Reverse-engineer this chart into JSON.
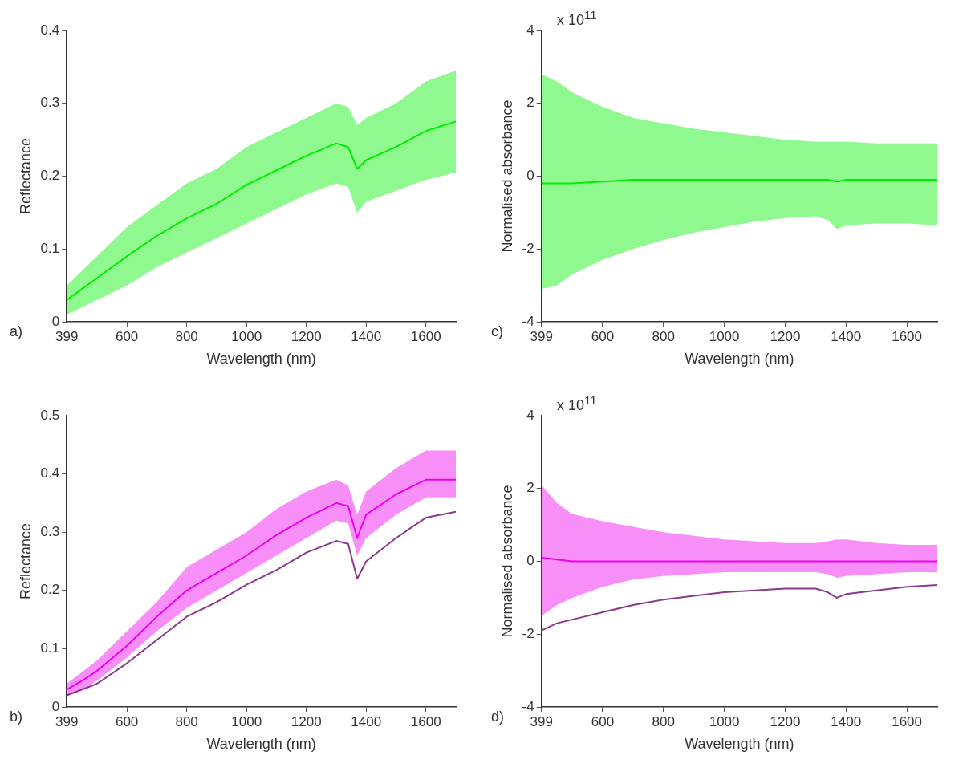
{
  "chart_data": [
    {
      "type": "line",
      "xlabel": "Wavelength (nm)",
      "ylabel": "Reflectance",
      "annotations": [
        "a)"
      ],
      "x": [
        399,
        450,
        500,
        600,
        700,
        800,
        900,
        1000,
        1100,
        1200,
        1300,
        1340,
        1370,
        1400,
        1500,
        1600,
        1700
      ],
      "xlim": [
        399,
        1700
      ],
      "xticks": [
        399,
        600,
        800,
        1000,
        1200,
        1400,
        1600
      ],
      "ylim": [
        0,
        0.4
      ],
      "yticks": [
        0,
        0.1,
        0.2,
        0.3,
        0.4
      ],
      "grid": false,
      "legend": false,
      "marker": "none",
      "line_style": "solid",
      "series": [
        {
          "color": "#00ee00",
          "values": [
            0.03,
            0.045,
            0.06,
            0.09,
            0.118,
            0.142,
            0.162,
            0.188,
            0.208,
            0.228,
            0.245,
            0.24,
            0.21,
            0.222,
            0.24,
            0.262,
            0.275
          ],
          "lower": [
            0.01,
            0.02,
            0.03,
            0.05,
            0.075,
            0.095,
            0.115,
            0.135,
            0.155,
            0.175,
            0.19,
            0.185,
            0.15,
            0.165,
            0.18,
            0.195,
            0.205
          ],
          "upper": [
            0.05,
            0.07,
            0.09,
            0.13,
            0.16,
            0.19,
            0.21,
            0.24,
            0.26,
            0.28,
            0.3,
            0.295,
            0.27,
            0.28,
            0.3,
            0.33,
            0.345
          ]
        }
      ]
    },
    {
      "type": "line",
      "xlabel": "Wavelength (nm)",
      "ylabel": "Normalised absorbance",
      "annotations": [
        "c)",
        "x 10$^{11}$"
      ],
      "x": [
        399,
        450,
        500,
        600,
        700,
        800,
        900,
        1000,
        1100,
        1200,
        1300,
        1340,
        1370,
        1400,
        1500,
        1600,
        1700
      ],
      "xlim": [
        399,
        1700
      ],
      "xticks": [
        399,
        600,
        800,
        1000,
        1200,
        1400,
        1600
      ],
      "ylim": [
        -4,
        4
      ],
      "yticks": [
        -4,
        -2,
        0,
        2,
        4
      ],
      "grid": false,
      "legend": false,
      "marker": "none",
      "line_style": "solid",
      "series": [
        {
          "color": "#00ee00",
          "values": [
            -0.2,
            -0.2,
            -0.2,
            -0.15,
            -0.1,
            -0.1,
            -0.1,
            -0.1,
            -0.1,
            -0.1,
            -0.1,
            -0.1,
            -0.15,
            -0.1,
            -0.1,
            -0.1,
            -0.1
          ],
          "lower": [
            -3.1,
            -3.0,
            -2.7,
            -2.3,
            -2.0,
            -1.75,
            -1.55,
            -1.4,
            -1.25,
            -1.15,
            -1.1,
            -1.2,
            -1.45,
            -1.35,
            -1.3,
            -1.3,
            -1.35
          ],
          "upper": [
            2.8,
            2.6,
            2.3,
            1.9,
            1.6,
            1.45,
            1.3,
            1.2,
            1.1,
            1.0,
            0.95,
            0.95,
            0.95,
            0.95,
            0.9,
            0.9,
            0.9
          ]
        }
      ]
    },
    {
      "type": "line",
      "xlabel": "Wavelength (nm)",
      "ylabel": "Reflectance",
      "annotations": [
        "b)"
      ],
      "x": [
        399,
        450,
        500,
        600,
        700,
        800,
        900,
        1000,
        1100,
        1200,
        1300,
        1340,
        1370,
        1400,
        1500,
        1600,
        1700
      ],
      "xlim": [
        399,
        1700
      ],
      "xticks": [
        399,
        600,
        800,
        1000,
        1200,
        1400,
        1600
      ],
      "ylim": [
        0,
        0.5
      ],
      "yticks": [
        0,
        0.1,
        0.2,
        0.3,
        0.4,
        0.5
      ],
      "grid": false,
      "legend": false,
      "marker": "none",
      "line_style": "solid",
      "series": [
        {
          "color": "#ee00ee",
          "values": [
            0.03,
            0.045,
            0.062,
            0.105,
            0.155,
            0.2,
            0.23,
            0.26,
            0.295,
            0.325,
            0.35,
            0.345,
            0.29,
            0.33,
            0.365,
            0.39,
            0.39
          ],
          "lower": [
            0.02,
            0.03,
            0.045,
            0.085,
            0.13,
            0.17,
            0.2,
            0.23,
            0.26,
            0.29,
            0.32,
            0.315,
            0.26,
            0.29,
            0.33,
            0.36,
            0.36
          ],
          "upper": [
            0.04,
            0.06,
            0.08,
            0.13,
            0.18,
            0.24,
            0.27,
            0.3,
            0.34,
            0.37,
            0.39,
            0.38,
            0.33,
            0.37,
            0.41,
            0.44,
            0.44
          ]
        },
        {
          "color": "#8b3a8b",
          "values": [
            0.02,
            0.03,
            0.04,
            0.075,
            0.115,
            0.155,
            0.18,
            0.21,
            0.235,
            0.265,
            0.285,
            0.28,
            0.22,
            0.25,
            0.29,
            0.325,
            0.335
          ]
        }
      ]
    },
    {
      "type": "line",
      "xlabel": "Wavelength (nm)",
      "ylabel": "Normalised absorbance",
      "annotations": [
        "d)",
        "x 10$^{11}$"
      ],
      "x": [
        399,
        450,
        500,
        600,
        700,
        800,
        900,
        1000,
        1100,
        1200,
        1300,
        1340,
        1370,
        1400,
        1500,
        1600,
        1700
      ],
      "xlim": [
        399,
        1700
      ],
      "xticks": [
        399,
        600,
        800,
        1000,
        1200,
        1400,
        1600
      ],
      "ylim": [
        -4,
        4
      ],
      "yticks": [
        -4,
        -2,
        0,
        2,
        4
      ],
      "grid": false,
      "legend": false,
      "marker": "none",
      "line_style": "solid",
      "series": [
        {
          "color": "#ee00ee",
          "values": [
            0.1,
            0.05,
            0,
            0,
            0,
            0,
            0,
            0,
            0,
            0,
            0,
            0,
            0,
            0,
            0,
            0,
            0
          ],
          "lower": [
            -1.5,
            -1.2,
            -1.0,
            -0.7,
            -0.5,
            -0.4,
            -0.35,
            -0.3,
            -0.3,
            -0.3,
            -0.3,
            -0.35,
            -0.45,
            -0.4,
            -0.35,
            -0.3,
            -0.3
          ],
          "upper": [
            2.1,
            1.6,
            1.3,
            1.1,
            0.95,
            0.8,
            0.7,
            0.6,
            0.55,
            0.5,
            0.5,
            0.55,
            0.6,
            0.6,
            0.5,
            0.45,
            0.45
          ]
        },
        {
          "color": "#8b3a8b",
          "values": [
            -1.9,
            -1.7,
            -1.6,
            -1.4,
            -1.2,
            -1.05,
            -0.95,
            -0.85,
            -0.8,
            -0.75,
            -0.75,
            -0.85,
            -1.0,
            -0.9,
            -0.8,
            -0.7,
            -0.65
          ]
        }
      ]
    }
  ]
}
